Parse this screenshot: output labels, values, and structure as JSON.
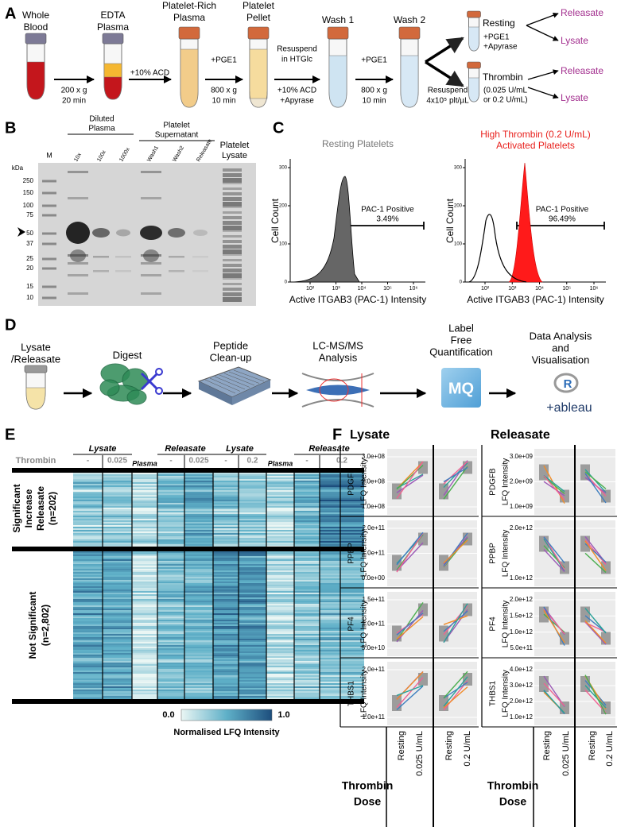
{
  "panel_a": {
    "label": "A",
    "steps": [
      [
        "Whole",
        "Blood"
      ],
      [
        "EDTA",
        "Plasma"
      ],
      [
        "Platelet-Rich",
        "Plasma"
      ],
      [
        "Platelet",
        "Pellet"
      ],
      [
        "Wash 1"
      ],
      [
        "Wash 2"
      ]
    ],
    "transfers": [
      {
        "below": [
          "200 x g",
          "20 min"
        ]
      },
      {
        "above": [
          "+10% ACD"
        ]
      },
      {
        "above": [
          "+PGE1"
        ],
        "below": [
          "800 x g",
          "10 min"
        ]
      },
      {
        "above": [
          "Resuspend",
          "in HTGlc"
        ],
        "below": [
          "+10% ACD",
          "+Apyrase"
        ]
      },
      {
        "above": [
          "+PGE1"
        ],
        "below": [
          "800 x g",
          "10 min"
        ]
      }
    ],
    "split": [
      "Resuspend",
      "4x10⁵ plt/µL"
    ],
    "branches": [
      {
        "name": "Resting",
        "note": [
          "+PGE1",
          "+Apyrase"
        ],
        "outputs": [
          "Releasate",
          "Lysate"
        ]
      },
      {
        "name": "Thrombin",
        "note": [
          "(0.025 U/mL",
          "or 0.2 U/mL)"
        ],
        "outputs": [
          "Releasate",
          "Lysate"
        ]
      }
    ]
  },
  "panel_b": {
    "label": "B",
    "marker_lane": "M",
    "groups": [
      {
        "name": [
          "Diluted",
          "Plasma"
        ],
        "lanes": [
          "10x",
          "100x",
          "1000x"
        ]
      },
      {
        "name": [
          "Platelet",
          "Supernatant"
        ],
        "lanes": [
          "Wash1",
          "Wash2",
          "Releasate"
        ]
      }
    ],
    "lysate_lane": [
      "Platelet",
      "Lysate"
    ],
    "unit": "kDa",
    "markers": [
      250,
      150,
      100,
      75,
      50,
      37,
      25,
      20,
      15,
      10
    ]
  },
  "panel_c": {
    "label": "C",
    "y_label": "Cell Count",
    "x_label": "Active ITGAB3 (PAC-1) Intensity",
    "yticks": [
      0,
      100,
      200,
      300
    ],
    "xticks": [
      "10²",
      "10³",
      "10⁴",
      "10⁵",
      "10⁶"
    ],
    "histograms": [
      {
        "title": [
          "Resting Platelets"
        ],
        "gate_label": "PAC-1 Positive",
        "gate_value": "3.49%"
      },
      {
        "title": [
          "High Thrombin (0.2 U/mL)",
          "Activated Platelets"
        ],
        "gate_label": "PAC-1 Positive",
        "gate_value": "96.49%"
      }
    ]
  },
  "panel_d": {
    "label": "D",
    "steps": [
      [
        "Lysate",
        "/Releasate"
      ],
      [
        "Digest"
      ],
      [
        "Peptide",
        "Clean-up"
      ],
      [
        "LC-MS/MS",
        "Analysis"
      ],
      [
        "Label",
        "Free",
        "Quantification"
      ],
      [
        "Data Analysis",
        "and",
        "Visualisation"
      ]
    ],
    "logos": [
      "MQ",
      "R",
      "+ableau"
    ]
  },
  "panel_e": {
    "label": "E",
    "row_title": "Thrombin",
    "groups": [
      "Lysate",
      "Releasate",
      "Lysate",
      "Releasate"
    ],
    "columns": [
      "-",
      "0.025",
      "Plasma",
      "-",
      "0.025",
      "-",
      "0.2",
      "Plasma",
      "-",
      "0.2"
    ],
    "blocks": [
      [
        "Significant",
        "Increase",
        "Releasate",
        "(n=202)"
      ],
      [
        "Not Significant",
        "(n=2,802)"
      ]
    ],
    "colorbar": {
      "min": "0.0",
      "max": "1.0",
      "label": "Normalised LFQ Intensity"
    }
  },
  "panel_f": {
    "label": "F",
    "y_label": "LFQ Intensity",
    "x_title": [
      "Thrombin",
      "Dose"
    ],
    "sections": [
      {
        "title": "Lysate",
        "doses": [
          "Resting",
          "0.025 U/mL",
          "Resting",
          "0.2 U/mL"
        ],
        "proteins": [
          {
            "name": "PDGFB",
            "ticks": [
              "3.0e+08",
              "2.0e+08",
              "1.0e+08"
            ]
          },
          {
            "name": "PPBP",
            "ticks": [
              "2.0e+11",
              "1.0e+11",
              "0.0e+00"
            ]
          },
          {
            "name": "PF4",
            "ticks": [
              "1.5e+11",
              "1.0e+11",
              "5.0e+10"
            ]
          },
          {
            "name": "THBS1",
            "ticks": [
              "2.0e+11",
              "1.0e+11"
            ]
          }
        ]
      },
      {
        "title": "Releasate",
        "doses": [
          "Resting",
          "0.025 U/mL",
          "Resting",
          "0.2 U/mL"
        ],
        "proteins": [
          {
            "name": "PDGFB",
            "ticks": [
              "3.0e+09",
              "2.0e+09",
              "1.0e+09"
            ]
          },
          {
            "name": "PPBP",
            "ticks": [
              "2.0e+12",
              "1.0e+12"
            ]
          },
          {
            "name": "PF4",
            "ticks": [
              "2.0e+12",
              "1.5e+12",
              "1.0e+12",
              "5.0e+11"
            ]
          },
          {
            "name": "THBS1",
            "ticks": [
              "4.0e+12",
              "3.0e+12",
              "2.0e+12",
              "1.0e+12"
            ]
          }
        ]
      }
    ]
  }
}
